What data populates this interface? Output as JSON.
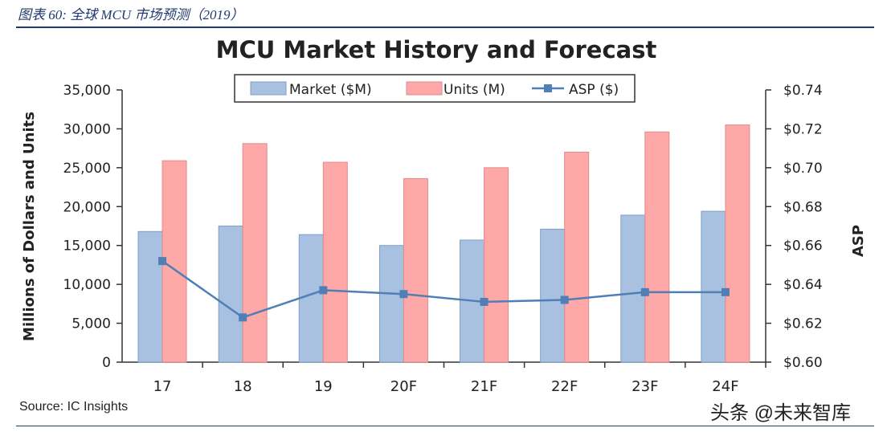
{
  "caption": "图表 60: 全球 MCU 市场预测（2019）",
  "source": "Source:  IC Insights",
  "watermark": "头条 @未来智库",
  "colors": {
    "market": "#a8c1e0",
    "market_stroke": "#7f9fc6",
    "units": "#ffa8a8",
    "units_stroke": "#e08a8a",
    "asp": "#4f7fb5",
    "caption": "#1f3a6e"
  },
  "chart_data": {
    "type": "bar",
    "title": "MCU Market History and Forecast",
    "categories": [
      "17",
      "18",
      "19",
      "20F",
      "21F",
      "22F",
      "23F",
      "24F"
    ],
    "ylabel": "Millions of Dollars and Units",
    "y2label": "ASP",
    "ylim": [
      0,
      35000
    ],
    "y2lim": [
      0.6,
      0.74
    ],
    "yticks": [
      "0",
      "5,000",
      "10,000",
      "15,000",
      "20,000",
      "25,000",
      "30,000",
      "35,000"
    ],
    "y2ticks": [
      "$0.60",
      "$0.62",
      "$0.64",
      "$0.66",
      "$0.68",
      "$0.70",
      "$0.72",
      "$0.74"
    ],
    "legend": [
      "Market ($M)",
      "Units (M)",
      "ASP ($)"
    ],
    "legend_position": "top-center",
    "series": [
      {
        "name": "Market ($M)",
        "type": "bar",
        "values": [
          16800,
          17500,
          16400,
          15000,
          15700,
          17100,
          18900,
          19400
        ]
      },
      {
        "name": "Units (M)",
        "type": "bar",
        "values": [
          25900,
          28100,
          25700,
          23600,
          25000,
          27000,
          29600,
          30500
        ]
      },
      {
        "name": "ASP ($)",
        "type": "line",
        "axis": "right",
        "values": [
          0.652,
          0.623,
          0.637,
          0.635,
          0.631,
          0.632,
          0.636,
          0.636
        ]
      }
    ]
  }
}
